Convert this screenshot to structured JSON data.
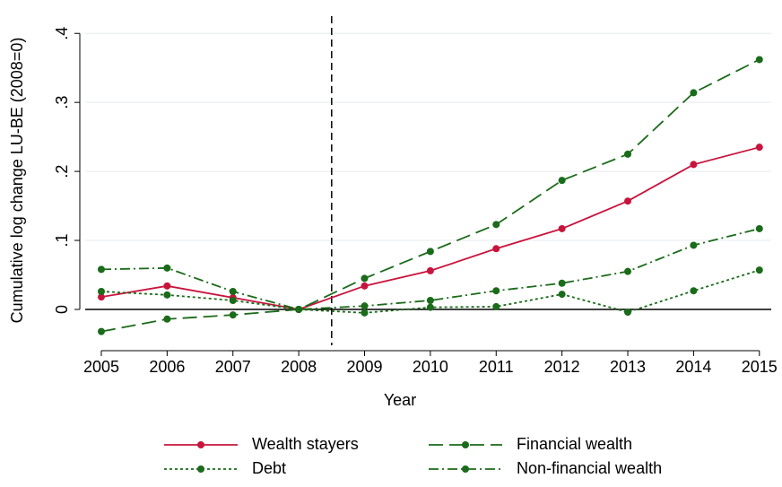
{
  "chart_data": {
    "type": "line",
    "x_label": "Year",
    "y_label": "Cumulative log change LU-BE (2008=0)",
    "x": [
      2005,
      2006,
      2007,
      2008,
      2009,
      2010,
      2011,
      2012,
      2013,
      2014,
      2015
    ],
    "xlim": [
      2004.755,
      2015.18
    ],
    "xticks": [
      2005,
      2006,
      2007,
      2008,
      2009,
      2010,
      2011,
      2012,
      2013,
      2014,
      2015
    ],
    "ylim": [
      -0.052,
      0.425
    ],
    "yticks": [
      0,
      {
        "value": 0.1,
        "label": ".1"
      },
      {
        "value": 0.2,
        "label": ".2"
      },
      {
        "value": 0.3,
        "label": ".3"
      },
      {
        "value": 0.4,
        "label": ".4"
      }
    ],
    "grid": true,
    "reference_line_x": 2008.5,
    "series": [
      {
        "name": "Wealth stayers",
        "color": "#c8143c",
        "dash": "none",
        "values": [
          0.018,
          0.034,
          0.017,
          0,
          0.034,
          0.056,
          0.088,
          0.117,
          0.157,
          0.21,
          0.235
        ]
      },
      {
        "name": "Financial wealth",
        "color": "#1a6b1a",
        "dash": "16,7",
        "values": [
          -0.032,
          -0.014,
          -0.008,
          0,
          0.045,
          0.084,
          0.123,
          0.187,
          0.225,
          0.314,
          0.362
        ]
      },
      {
        "name": "Debt",
        "color": "#1a6b1a",
        "dash": "3,3",
        "values": [
          0.026,
          0.021,
          0.013,
          0,
          -0.005,
          0.003,
          0.004,
          0.022,
          -0.004,
          0.027,
          0.057
        ]
      },
      {
        "name": "Non-financial wealth",
        "color": "#1a6b1a",
        "dash": "11,4,2,4",
        "values": [
          0.058,
          0.06,
          0.026,
          0,
          0.005,
          0.013,
          0.027,
          0.038,
          0.055,
          0.093,
          0.117
        ]
      }
    ]
  }
}
